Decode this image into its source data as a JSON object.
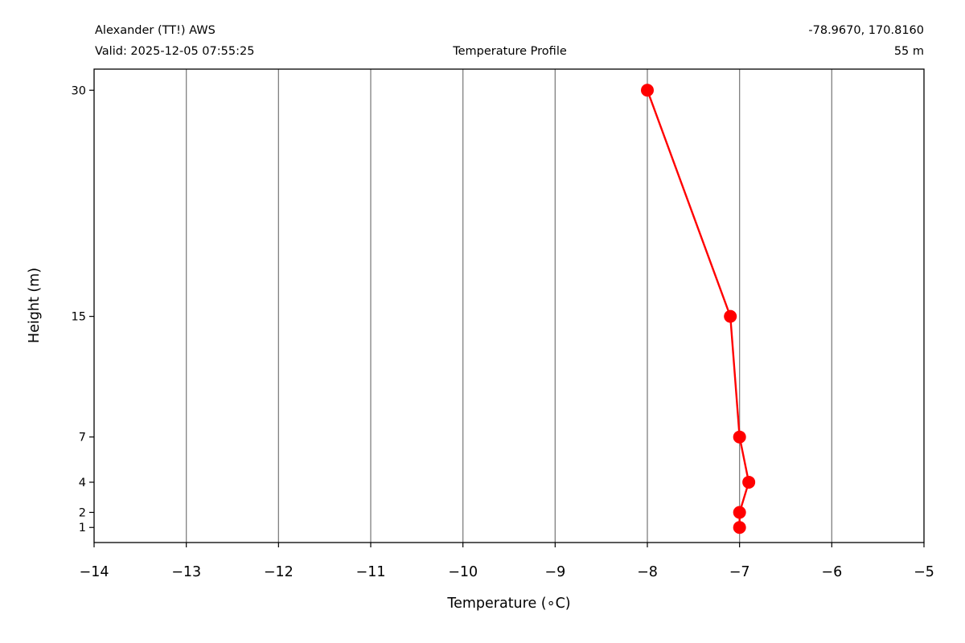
{
  "header": {
    "station": "Alexander (TT!) AWS",
    "valid": "Valid: 2025-12-05 07:55:25",
    "title": "Temperature Profile",
    "coords": "-78.9670, 170.8160",
    "elevation": "55 m"
  },
  "chart_data": {
    "type": "line",
    "title": "Temperature Profile",
    "xlabel": "Temperature (∘C)",
    "ylabel": "Height (m)",
    "xlim": [
      -14,
      -5
    ],
    "ylim": [
      0,
      31.4
    ],
    "xticks": [
      -14,
      -13,
      -12,
      -11,
      -10,
      -9,
      -8,
      -7,
      -6,
      -5
    ],
    "xtick_labels": [
      "−14",
      "−13",
      "−12",
      "−11",
      "−10",
      "−9",
      "−8",
      "−7",
      "−6",
      "−5"
    ],
    "yticks": [
      1,
      2,
      4,
      7,
      15,
      30
    ],
    "ytick_labels": [
      "1",
      "2",
      "4",
      "7",
      "15",
      "30"
    ],
    "grid": "vertical",
    "series": [
      {
        "color": "#ff0000",
        "marker": "circle",
        "points": [
          {
            "x": -7.0,
            "y": 1
          },
          {
            "x": -7.0,
            "y": 2
          },
          {
            "x": -6.9,
            "y": 4
          },
          {
            "x": -7.0,
            "y": 7
          },
          {
            "x": -7.1,
            "y": 15
          },
          {
            "x": -8.0,
            "y": 30
          }
        ]
      }
    ]
  }
}
